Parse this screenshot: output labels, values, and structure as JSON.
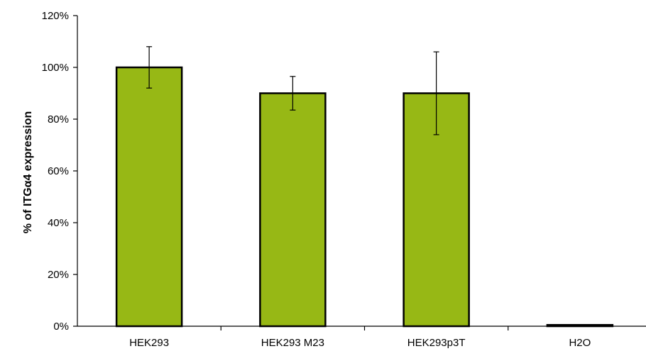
{
  "chart_data": {
    "type": "bar",
    "categories": [
      "HEK293",
      "HEK293 M23",
      "HEK293p3T",
      "H2O"
    ],
    "series": [
      {
        "values": [
          100,
          90,
          90,
          0.5
        ],
        "error_low": [
          92,
          83.5,
          74,
          0.5
        ],
        "error_high": [
          108,
          96.5,
          106,
          0.5
        ]
      }
    ],
    "ylabel": "% of ITGα4  expression",
    "xlabel": "",
    "ylim": [
      0,
      120
    ],
    "yticks": [
      0,
      20,
      40,
      60,
      80,
      100,
      120
    ],
    "tick_format": "percent",
    "grid": false,
    "legend": "none",
    "colors": {
      "bar_fill": "#97b815",
      "bar_stroke": "#000000",
      "axis": "#000000"
    }
  }
}
